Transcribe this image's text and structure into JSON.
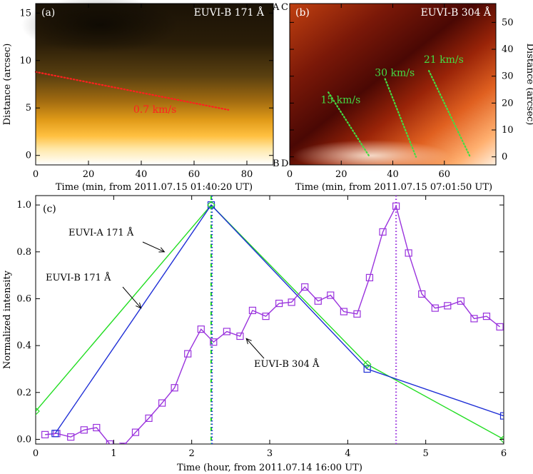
{
  "chart_data": [
    {
      "type": "heatmap",
      "panel_label": "(a)",
      "instrument_label": "EUVI-B 171 Å",
      "xlabel": "Time (min, from 2011.07.15 01:40:20 UT)",
      "ylabel": "Distance (arcsec)",
      "xlim": [
        0,
        90
      ],
      "ylim": [
        -1,
        16
      ],
      "x_ticks": [
        "0",
        "20",
        "40",
        "60",
        "80"
      ],
      "y_ticks": [
        "0",
        "5",
        "10",
        "15"
      ],
      "colormap": "black-yellow-white",
      "corner_labels": {
        "top": "A",
        "bottom": "B"
      },
      "annotations": [
        {
          "text": "0.7 km/s",
          "color": "#ff2020",
          "x": 37,
          "y": 4.5
        }
      ],
      "fit_lines": [
        {
          "color": "#ff2020",
          "from": [
            0,
            8.8
          ],
          "to": [
            73,
            4.8
          ]
        }
      ]
    },
    {
      "type": "heatmap",
      "panel_label": "(b)",
      "instrument_label": "EUVI-B 304 Å",
      "xlabel": "Time (min, from 2011.07.15 07:01:50 UT)",
      "ylabel": "Distance (arcsec)",
      "xlim": [
        0,
        80
      ],
      "ylim": [
        -3,
        57
      ],
      "x_ticks": [
        "0",
        "20",
        "40",
        "60"
      ],
      "y_ticks": [
        "0",
        "10",
        "20",
        "30",
        "40",
        "50"
      ],
      "colormap": "black-red-white",
      "corner_labels": {
        "top": "C",
        "bottom": "D"
      },
      "annotations": [
        {
          "text": "15 km/s",
          "color": "#44dd44",
          "x": 12,
          "y": 20
        },
        {
          "text": "30 km/s",
          "color": "#44dd44",
          "x": 33,
          "y": 30
        },
        {
          "text": "21 km/s",
          "color": "#44dd44",
          "x": 52,
          "y": 35
        }
      ],
      "fit_lines": [
        {
          "color": "#44dd44",
          "from": [
            15,
            24
          ],
          "to": [
            31,
            0
          ]
        },
        {
          "color": "#44dd44",
          "from": [
            37,
            29
          ],
          "to": [
            49,
            0
          ]
        },
        {
          "color": "#44dd44",
          "from": [
            54,
            32
          ],
          "to": [
            70,
            0
          ]
        }
      ]
    },
    {
      "type": "line",
      "panel_label": "(c)",
      "xlabel": "Time (hour, from 2011.07.14 16:00 UT)",
      "ylabel": "Normalized intensity",
      "xlim": [
        0,
        6
      ],
      "ylim": [
        -0.02,
        1.04
      ],
      "x_ticks": [
        "0",
        "1",
        "2",
        "3",
        "4",
        "5",
        "6"
      ],
      "y_ticks": [
        "0.0",
        "0.2",
        "0.4",
        "0.6",
        "0.8",
        "1.0"
      ],
      "series": [
        {
          "name": "EUVI-A 171 Å",
          "color": "#22dd22",
          "marker": "diamond",
          "x": [
            0,
            2.25,
            4.25,
            6
          ],
          "y": [
            0.12,
            1.0,
            0.32,
            0.0
          ]
        },
        {
          "name": "EUVI-B 171 Å",
          "color": "#1f2fd6",
          "marker": "square",
          "x": [
            0.25,
            2.25,
            4.25,
            6
          ],
          "y": [
            0.025,
            1.0,
            0.3,
            0.1
          ]
        },
        {
          "name": "EUVI-B 304 Å",
          "color": "#9a33dd",
          "marker": "square",
          "x": [
            0.12,
            0.27,
            0.45,
            0.62,
            0.78,
            0.95,
            1.12,
            1.28,
            1.45,
            1.62,
            1.78,
            1.95,
            2.12,
            2.28,
            2.45,
            2.62,
            2.78,
            2.95,
            3.12,
            3.28,
            3.45,
            3.62,
            3.78,
            3.95,
            4.12,
            4.28,
            4.45,
            4.62,
            4.78,
            4.95,
            5.12,
            5.28,
            5.45,
            5.62,
            5.78,
            5.95
          ],
          "y": [
            0.02,
            0.025,
            0.01,
            0.04,
            0.05,
            -0.02,
            -0.03,
            0.03,
            0.09,
            0.155,
            0.22,
            0.365,
            0.47,
            0.415,
            0.46,
            0.44,
            0.55,
            0.525,
            0.58,
            0.585,
            0.65,
            0.59,
            0.615,
            0.545,
            0.535,
            0.69,
            0.885,
            0.995,
            0.795,
            0.62,
            0.56,
            0.57,
            0.59,
            0.515,
            0.525,
            0.48
          ]
        }
      ],
      "vlines": [
        {
          "x": 2.25,
          "color": "#22dd22",
          "style": "dash-dot"
        },
        {
          "x": 2.26,
          "color": "#1f2fd6",
          "style": "dotted"
        },
        {
          "x": 4.62,
          "color": "#9a33dd",
          "style": "dotted"
        }
      ],
      "annotations": [
        {
          "text": "EUVI-A 171 Å",
          "arrow_to": [
            1.65,
            0.8
          ],
          "color": "#000"
        },
        {
          "text": "EUVI-B 171 Å",
          "arrow_to": [
            1.35,
            0.56
          ],
          "color": "#000"
        },
        {
          "text": "EUVI-B 304 Å",
          "arrow_to": [
            2.7,
            0.43
          ],
          "color": "#000"
        }
      ]
    }
  ]
}
